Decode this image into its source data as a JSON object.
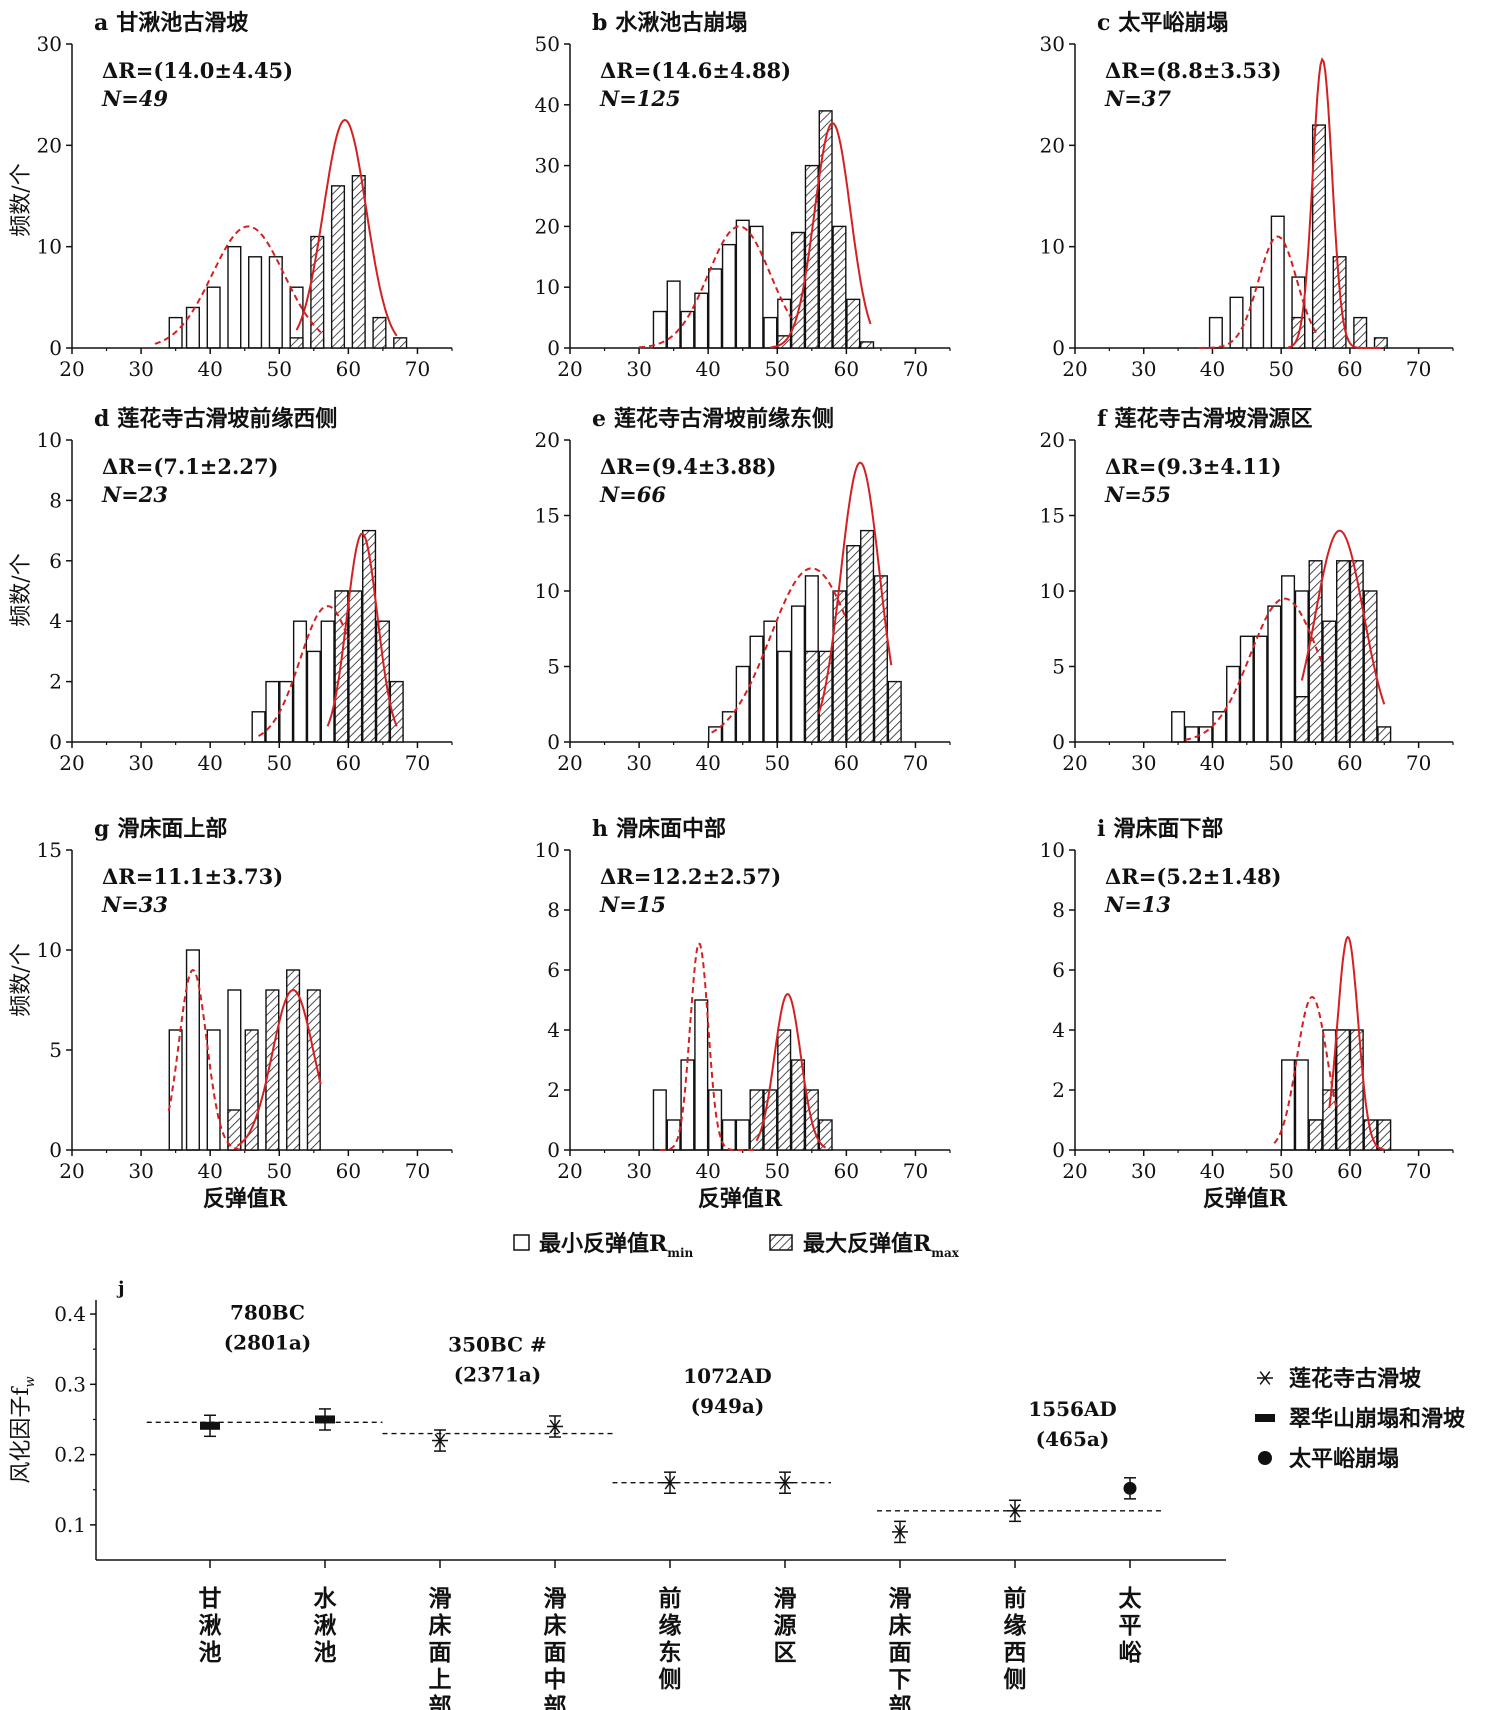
{
  "ylabel_freq": "频数/个",
  "xlabel_R": "反弹值R",
  "legend": {
    "min": "最小反弹值R",
    "min_sub": "min",
    "max": "最大反弹值R",
    "max_sub": "max"
  },
  "x_ticks": [
    20,
    30,
    40,
    50,
    60,
    70
  ],
  "colors": {
    "curve": "#d42020",
    "hatch": "#222222",
    "bar_stroke": "#111111"
  },
  "chart_data": [
    {
      "id": "a",
      "type": "bar",
      "title": "甘湫池古滑坡",
      "letter": "a",
      "stat_line": "ΔR=(14.0±4.45)",
      "n_line": "N=49",
      "xlim": [
        20,
        75
      ],
      "ylim": [
        0,
        30
      ],
      "yticks": [
        0,
        10,
        20,
        30
      ],
      "series": [
        {
          "name": "最小反弹值Rmin",
          "x": [
            35,
            37.5,
            40.5,
            43.5,
            46.5,
            49.5,
            52.5,
            55.5
          ],
          "values": [
            3,
            4,
            6,
            10,
            9,
            9,
            6,
            1
          ]
        },
        {
          "name": "最大反弹值Rmax",
          "x": [
            52.5,
            55.5,
            58.5,
            61.5,
            64.5,
            67.5
          ],
          "values": [
            1,
            11,
            16,
            17,
            3,
            1
          ]
        }
      ],
      "curve_min": {
        "mean": 45.5,
        "sd": 5.2,
        "peak": 12,
        "range": [
          32,
          56
        ]
      },
      "curve_max": {
        "mean": 59.5,
        "sd": 3.1,
        "peak": 22.5,
        "range": [
          52.5,
          67
        ]
      }
    },
    {
      "id": "b",
      "type": "bar",
      "title": "水湫池古崩塌",
      "letter": "b",
      "stat_line": "ΔR=(14.6±4.88)",
      "n_line": "N=125",
      "xlim": [
        20,
        75
      ],
      "ylim": [
        0,
        50
      ],
      "yticks": [
        0,
        10,
        20,
        30,
        40,
        50
      ],
      "series": [
        {
          "name": "最小反弹值Rmin",
          "x": [
            33,
            35,
            37,
            39,
            41,
            43,
            45,
            47,
            49,
            51
          ],
          "values": [
            6,
            11,
            6,
            9,
            13,
            17,
            21,
            20,
            5,
            8
          ]
        },
        {
          "name": "最大反弹值Rmax",
          "x": [
            51,
            53,
            55,
            57,
            59,
            61,
            63
          ],
          "values": [
            2,
            19,
            30,
            39,
            20,
            8,
            1
          ]
        }
      ],
      "curve_min": {
        "mean": 44.5,
        "sd": 4.5,
        "peak": 20,
        "range": [
          30,
          52
        ]
      },
      "curve_max": {
        "mean": 58,
        "sd": 2.6,
        "peak": 37,
        "range": [
          49,
          63.5
        ]
      }
    },
    {
      "id": "c",
      "type": "bar",
      "title": "太平峪崩塌",
      "letter": "c",
      "stat_line": "ΔR=(8.8±3.53)",
      "n_line": "N=37",
      "xlim": [
        20,
        75
      ],
      "ylim": [
        0,
        30
      ],
      "yticks": [
        0,
        10,
        20,
        30
      ],
      "series": [
        {
          "name": "最小反弹值Rmin",
          "x": [
            40.5,
            43.5,
            46.5,
            49.5,
            52.5,
            55.5
          ],
          "values": [
            3,
            5,
            6,
            13,
            7,
            3
          ]
        },
        {
          "name": "最大反弹值Rmax",
          "x": [
            52.5,
            55.5,
            58.5,
            61.5,
            64.5
          ],
          "values": [
            3,
            22,
            9,
            3,
            1
          ]
        }
      ],
      "curve_min": {
        "mean": 49.5,
        "sd": 2.8,
        "peak": 11,
        "range": [
          38,
          55.5
        ]
      },
      "curve_max": {
        "mean": 56,
        "sd": 1.4,
        "peak": 28.5,
        "range": [
          51,
          64.5
        ]
      }
    },
    {
      "id": "d",
      "type": "bar",
      "title": "莲花寺古滑坡前缘西侧",
      "letter": "d",
      "stat_line": "ΔR=(7.1±2.27)",
      "n_line": "N=23",
      "xlim": [
        20,
        75
      ],
      "ylim": [
        0,
        10
      ],
      "yticks": [
        0,
        2,
        4,
        6,
        8,
        10
      ],
      "series": [
        {
          "name": "最小反弹值Rmin",
          "x": [
            47,
            49,
            51,
            53,
            55,
            57,
            59,
            61
          ],
          "values": [
            1,
            2,
            2,
            4,
            3,
            4,
            5,
            2
          ]
        },
        {
          "name": "最大反弹值Rmax",
          "x": [
            59,
            61,
            63,
            65,
            67
          ],
          "values": [
            5,
            5,
            7,
            4,
            2
          ]
        }
      ],
      "curve_min": {
        "mean": 57,
        "sd": 4,
        "peak": 4.5,
        "range": [
          47,
          60
        ]
      },
      "curve_max": {
        "mean": 62,
        "sd": 2.2,
        "peak": 6.9,
        "range": [
          57,
          67
        ]
      }
    },
    {
      "id": "e",
      "type": "bar",
      "title": "莲花寺古滑坡前缘东侧",
      "letter": "e",
      "stat_line": "ΔR=(9.4±3.88)",
      "n_line": "N=66",
      "xlim": [
        20,
        75
      ],
      "ylim": [
        0,
        20
      ],
      "yticks": [
        0,
        5,
        10,
        15,
        20
      ],
      "series": [
        {
          "name": "最小反弹值Rmin",
          "x": [
            41,
            43,
            45,
            47,
            49,
            51,
            53,
            55,
            57
          ],
          "values": [
            1,
            2,
            5,
            7,
            8,
            6,
            9,
            11,
            4
          ]
        },
        {
          "name": "最大反弹值Rmax",
          "x": [
            55,
            57,
            59,
            61,
            63,
            65,
            67
          ],
          "values": [
            6,
            6,
            10,
            13,
            14,
            11,
            4
          ]
        }
      ],
      "curve_min": {
        "mean": 55,
        "sd": 6,
        "peak": 11.5,
        "range": [
          40.5,
          60
        ]
      },
      "curve_max": {
        "mean": 62,
        "sd": 2.8,
        "peak": 18.5,
        "range": [
          56,
          66.5
        ]
      }
    },
    {
      "id": "f",
      "type": "bar",
      "title": "莲花寺古滑坡滑源区",
      "letter": "f",
      "stat_line": "ΔR=(9.3±4.11)",
      "n_line": "N=55",
      "xlim": [
        20,
        75
      ],
      "ylim": [
        0,
        20
      ],
      "yticks": [
        0,
        5,
        10,
        15,
        20
      ],
      "series": [
        {
          "name": "最小反弹值Rmin",
          "x": [
            35,
            37,
            39,
            41,
            43,
            45,
            47,
            49,
            51,
            53,
            55,
            57,
            59
          ],
          "values": [
            2,
            1,
            1,
            2,
            5,
            7,
            7,
            9,
            11,
            10,
            11,
            4,
            1
          ]
        },
        {
          "name": "最大反弹值Rmax",
          "x": [
            53,
            55,
            57,
            59,
            61,
            63,
            65
          ],
          "values": [
            3,
            12,
            8,
            12,
            12,
            10,
            1
          ]
        }
      ],
      "curve_min": {
        "mean": 50.5,
        "sd": 5,
        "peak": 9.5,
        "range": [
          36,
          56
        ]
      },
      "curve_max": {
        "mean": 58.5,
        "sd": 3.5,
        "peak": 14,
        "range": [
          53,
          65
        ]
      }
    },
    {
      "id": "g",
      "type": "bar",
      "title": "滑床面上部",
      "letter": "g",
      "stat_line": "ΔR=11.1±3.73)",
      "n_line": "N=33",
      "xlim": [
        20,
        75
      ],
      "ylim": [
        0,
        15
      ],
      "yticks": [
        0,
        5,
        10,
        15
      ],
      "series": [
        {
          "name": "最小反弹值Rmin",
          "x": [
            35,
            37.5,
            40.5,
            43.5,
            46,
            49
          ],
          "values": [
            6,
            10,
            6,
            8,
            3,
            5
          ]
        },
        {
          "name": "最大反弹值Rmax",
          "x": [
            43.5,
            46,
            49,
            52,
            55
          ],
          "values": [
            2,
            6,
            8,
            9,
            8
          ]
        }
      ],
      "curve_min": {
        "mean": 37.5,
        "sd": 2,
        "peak": 9,
        "range": [
          34,
          45
        ]
      },
      "curve_max": {
        "mean": 52,
        "sd": 3,
        "peak": 8,
        "range": [
          44,
          56
        ]
      }
    },
    {
      "id": "h",
      "type": "bar",
      "title": "滑床面中部",
      "letter": "h",
      "stat_line": "ΔR=12.2±2.57)",
      "n_line": "N=15",
      "xlim": [
        20,
        75
      ],
      "ylim": [
        0,
        10
      ],
      "yticks": [
        0,
        2,
        4,
        6,
        8,
        10
      ],
      "series": [
        {
          "name": "最小反弹值Rmin",
          "x": [
            33,
            35,
            37,
            39,
            41,
            43,
            45
          ],
          "values": [
            2,
            1,
            3,
            5,
            2,
            1,
            1
          ]
        },
        {
          "name": "最大反弹值Rmax",
          "x": [
            47,
            49,
            51,
            53,
            55,
            57
          ],
          "values": [
            2,
            2,
            4,
            3,
            2,
            1
          ]
        }
      ],
      "curve_min": {
        "mean": 38.7,
        "sd": 1.3,
        "peak": 6.9,
        "range": [
          33,
          47
        ]
      },
      "curve_max": {
        "mean": 51.5,
        "sd": 1.9,
        "peak": 5.2,
        "range": [
          47,
          57
        ]
      }
    },
    {
      "id": "i",
      "type": "bar",
      "title": "滑床面下部",
      "letter": "i",
      "stat_line": "ΔR=(5.2±1.48)",
      "n_line": "N=13",
      "xlim": [
        20,
        75
      ],
      "ylim": [
        0,
        10
      ],
      "yticks": [
        0,
        2,
        4,
        6,
        8,
        10
      ],
      "series": [
        {
          "name": "最小反弹值Rmin",
          "x": [
            51,
            53,
            55,
            57,
            59
          ],
          "values": [
            3,
            3,
            1,
            4,
            4
          ]
        },
        {
          "name": "最大反弹值Rmax",
          "x": [
            55,
            57,
            59,
            61,
            63,
            65
          ],
          "values": [
            1,
            2,
            4,
            4,
            1,
            1
          ]
        }
      ],
      "curve_min": {
        "mean": 54.5,
        "sd": 2.2,
        "peak": 5.1,
        "range": [
          49,
          58
        ]
      },
      "curve_max": {
        "mean": 59.7,
        "sd": 1.5,
        "peak": 7.1,
        "range": [
          57,
          65
        ]
      }
    },
    {
      "id": "j",
      "type": "scatter",
      "letter": "j",
      "ylabel": "风化因子f",
      "ylabel_sub": "w",
      "ylim": [
        0.05,
        0.42
      ],
      "yticks": [
        0.1,
        0.2,
        0.3,
        0.4
      ],
      "categories": [
        [
          "甘",
          "湫",
          "池"
        ],
        [
          "水",
          "湫",
          "池"
        ],
        [
          "滑",
          "床",
          "面",
          "上",
          "部"
        ],
        [
          "滑",
          "床",
          "面",
          "中",
          "部"
        ],
        [
          "前",
          "缘",
          "东",
          "侧"
        ],
        [
          "滑",
          "源",
          "区"
        ],
        [
          "滑",
          "床",
          "面",
          "下",
          "部"
        ],
        [
          "前",
          "缘",
          "西",
          "侧"
        ],
        [
          "太",
          "平",
          "峪"
        ]
      ],
      "points": [
        {
          "cat": 0,
          "y": 0.241,
          "err": 0.015,
          "group": "翠华山崩塌和滑坡"
        },
        {
          "cat": 1,
          "y": 0.25,
          "err": 0.015,
          "group": "翠华山崩塌和滑坡"
        },
        {
          "cat": 2,
          "y": 0.22,
          "err": 0.015,
          "group": "莲花寺古滑坡"
        },
        {
          "cat": 3,
          "y": 0.24,
          "err": 0.015,
          "group": "莲花寺古滑坡"
        },
        {
          "cat": 4,
          "y": 0.16,
          "err": 0.015,
          "group": "莲花寺古滑坡"
        },
        {
          "cat": 5,
          "y": 0.16,
          "err": 0.015,
          "group": "莲花寺古滑坡"
        },
        {
          "cat": 6,
          "y": 0.09,
          "err": 0.015,
          "group": "莲花寺古滑坡"
        },
        {
          "cat": 7,
          "y": 0.12,
          "err": 0.015,
          "group": "莲花寺古滑坡"
        },
        {
          "cat": 8,
          "y": 0.152,
          "err": 0.015,
          "group": "太平峪崩塌"
        }
      ],
      "means": [
        {
          "from": -0.55,
          "to": 1.5,
          "y": 0.246
        },
        {
          "from": 1.5,
          "to": 3.5,
          "y": 0.23
        },
        {
          "from": 3.5,
          "to": 5.4,
          "y": 0.16
        },
        {
          "from": 5.8,
          "to": 8.3,
          "y": 0.12
        }
      ],
      "annotations": [
        {
          "cat": 0.5,
          "lines": [
            "780BC",
            "(2801a)"
          ],
          "y": 0.392
        },
        {
          "cat": 2.5,
          "lines": [
            "350BC #",
            "(2371a)"
          ],
          "y": 0.347
        },
        {
          "cat": 4.5,
          "lines": [
            "1072AD",
            "(949a)"
          ],
          "y": 0.302
        },
        {
          "cat": 7.5,
          "lines": [
            "1556AD",
            "(465a)"
          ],
          "y": 0.255
        }
      ],
      "legend": [
        {
          "marker": "asterisk",
          "label": "莲花寺古滑坡"
        },
        {
          "marker": "bar",
          "label": "翠华山崩塌和滑坡"
        },
        {
          "marker": "dot",
          "label": "太平峪崩塌"
        }
      ]
    }
  ]
}
